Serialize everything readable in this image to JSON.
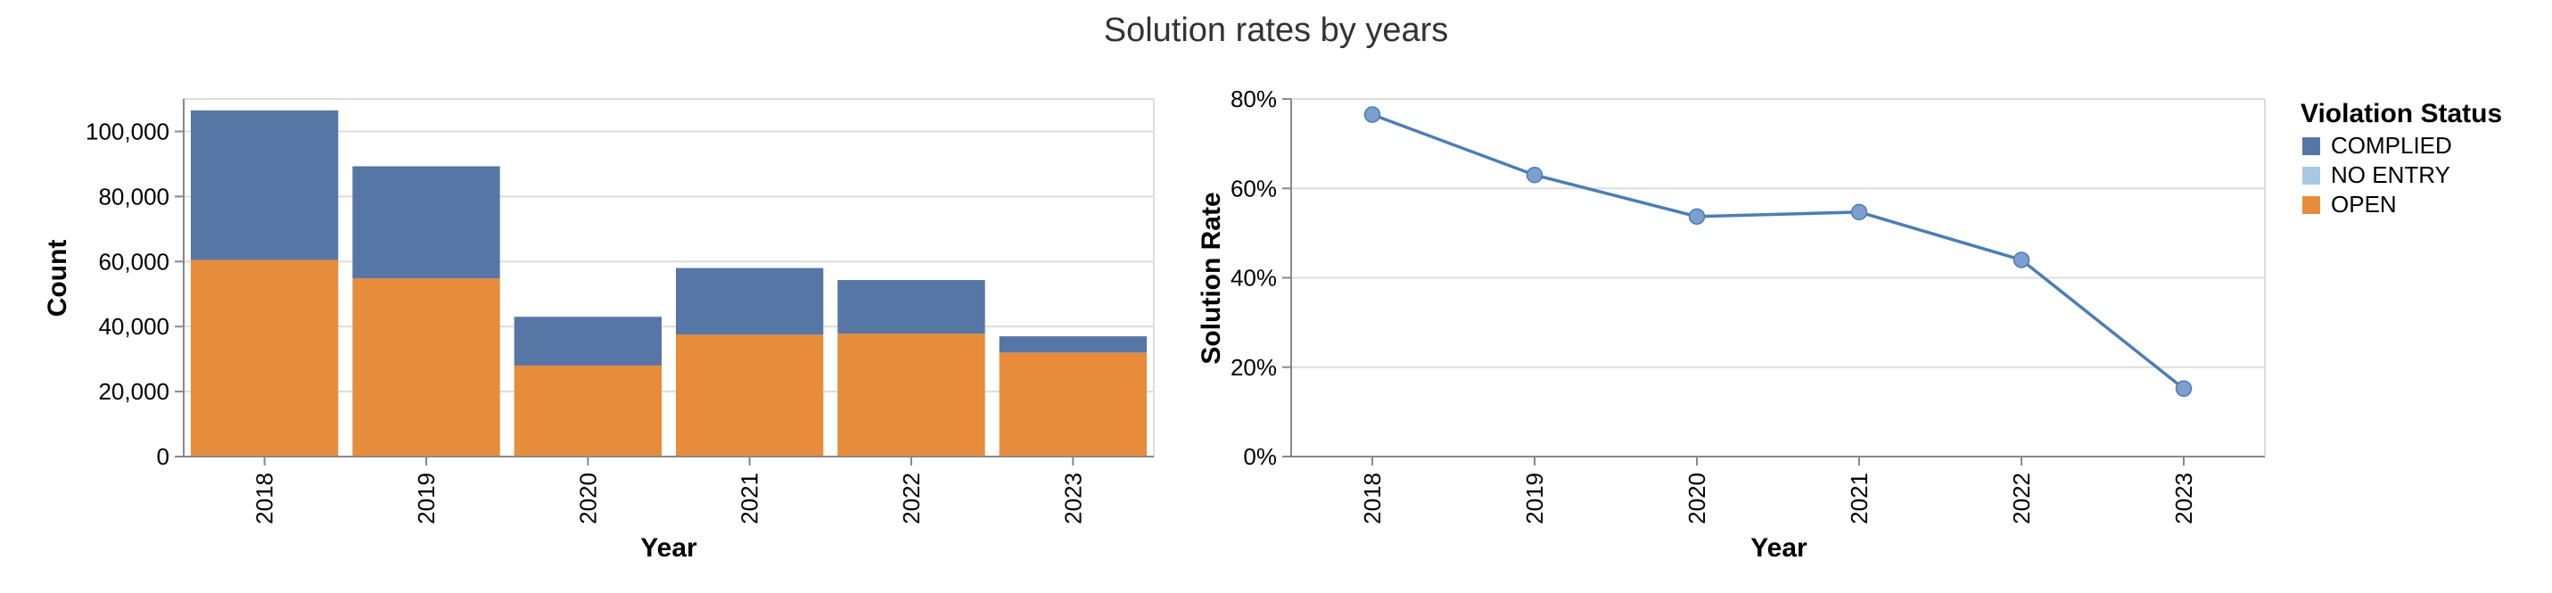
{
  "chart_title": "Solution rates by years",
  "colors": {
    "complied": "#5676a6",
    "no_entry": "#a7c8e4",
    "open": "#e68c3b",
    "line": "#4c7db5",
    "point": "#7ba0cf",
    "grid": "#dddddd",
    "axis": "#888888"
  },
  "legend": {
    "title": "Violation Status",
    "items": [
      {
        "label": "COMPLIED",
        "color": "#5676a6"
      },
      {
        "label": "NO ENTRY",
        "color": "#a7c8e4"
      },
      {
        "label": "OPEN",
        "color": "#e68c3b"
      }
    ]
  },
  "chart_data": [
    {
      "type": "bar",
      "stacked": true,
      "categories": [
        "2018",
        "2019",
        "2020",
        "2021",
        "2022",
        "2023"
      ],
      "series": [
        {
          "name": "OPEN",
          "values": [
            60500,
            54800,
            28000,
            37500,
            37800,
            32000
          ]
        },
        {
          "name": "NO ENTRY",
          "values": [
            0,
            0,
            0,
            0,
            0,
            0
          ]
        },
        {
          "name": "COMPLIED",
          "values": [
            46000,
            34500,
            15000,
            20500,
            16500,
            5000
          ]
        }
      ],
      "xlabel": "Year",
      "ylabel": "Count",
      "ylim": [
        0,
        110000
      ],
      "yticks": [
        0,
        20000,
        40000,
        60000,
        80000,
        100000
      ],
      "ytick_labels": [
        "0",
        "20,000",
        "40,000",
        "60,000",
        "80,000",
        "100,000"
      ],
      "grid": true
    },
    {
      "type": "line",
      "x": [
        "2018",
        "2019",
        "2020",
        "2021",
        "2022",
        "2023"
      ],
      "values": [
        0.765,
        0.63,
        0.537,
        0.547,
        0.44,
        0.152
      ],
      "xlabel": "Year",
      "ylabel": "Solution Rate",
      "ylim": [
        0,
        0.8
      ],
      "yticks": [
        0,
        0.2,
        0.4,
        0.6,
        0.8
      ],
      "ytick_labels": [
        "0%",
        "20%",
        "40%",
        "60%",
        "80%"
      ],
      "grid": true
    }
  ]
}
